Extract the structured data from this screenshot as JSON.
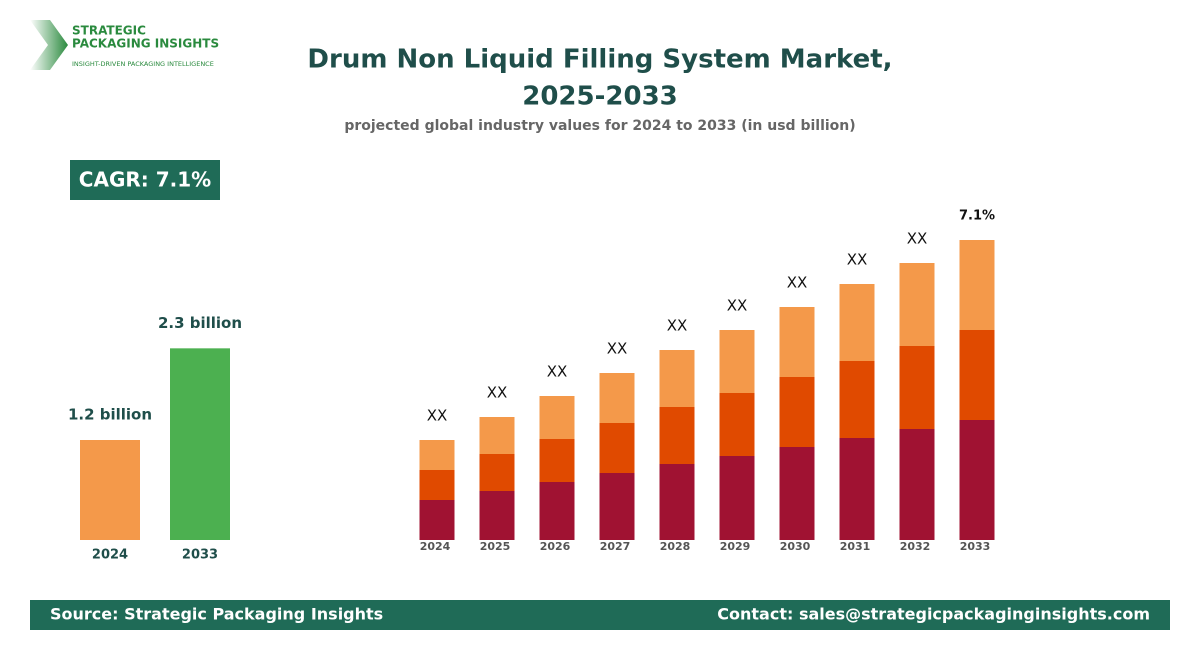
{
  "header": {
    "logo_line1": "STRATEGIC",
    "logo_line2": "PACKAGING INSIGHTS",
    "logo_tagline": "INSIGHT-DRIVEN PACKAGING INTELLIGENCE",
    "title_line1": "Drum Non Liquid Filling System Market,",
    "title_line2": "2025-2033",
    "subtitle": "projected global industry values for 2024 to 2033 (in usd billion)",
    "cagr": "CAGR: 7.1%"
  },
  "chart_data": [
    {
      "type": "bar",
      "categories": [
        "2024",
        "2033"
      ],
      "values": [
        1.2,
        2.3
      ],
      "value_labels": [
        "1.2 billion",
        "2.3 billion"
      ],
      "colors": [
        "#f4994a",
        "#4cb050"
      ],
      "ylim": [
        0,
        2.76
      ]
    },
    {
      "type": "stacked-bar",
      "categories": [
        "2024",
        "2025",
        "2026",
        "2027",
        "2028",
        "2029",
        "2030",
        "2031",
        "2032",
        "2033"
      ],
      "series": [
        {
          "color": "#a01232",
          "values": [
            40,
            49,
            58,
            67,
            76,
            84,
            93,
            102,
            111,
            120
          ]
        },
        {
          "color": "#e04a00",
          "values": [
            30,
            37,
            43,
            50,
            57,
            63,
            70,
            77,
            83,
            90
          ]
        },
        {
          "color": "#f4994a",
          "values": [
            30,
            37,
            43,
            50,
            57,
            63,
            70,
            77,
            83,
            90
          ]
        }
      ],
      "bar_labels": [
        "XX",
        "XX",
        "XX",
        "XX",
        "XX",
        "XX",
        "XX",
        "XX",
        "XX",
        "7.1%"
      ],
      "ylim": [
        0,
        300
      ]
    }
  ],
  "footer": {
    "source": "Source: Strategic Packaging Insights",
    "contact": "Contact: sales@strategicpackaginginsights.com"
  }
}
